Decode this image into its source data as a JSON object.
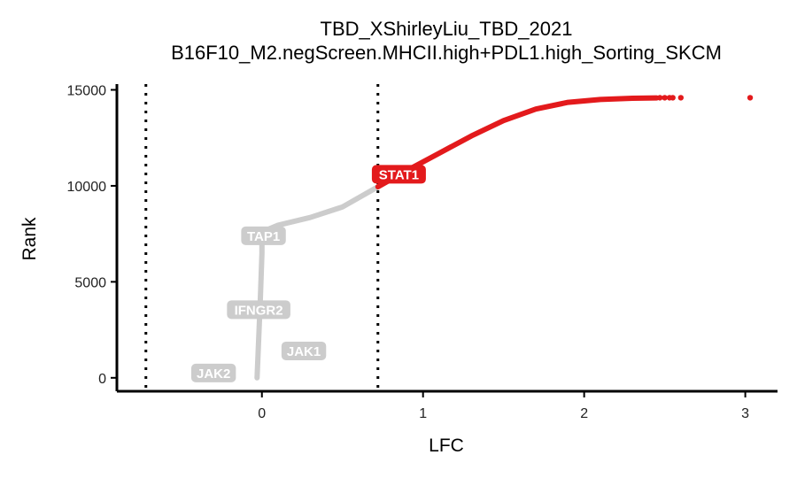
{
  "chart_data": {
    "type": "scatter",
    "title": "TBD_XShirleyLiu_TBD_2021",
    "subtitle": "B16F10_M2.negScreen.MHCII.high+PDL1.high_Sorting_SKCM",
    "xlabel": "LFC",
    "ylabel": "Rank",
    "xlim": [
      -0.9,
      3.2
    ],
    "ylim": [
      -700,
      15300
    ],
    "x_ticks": [
      0,
      1,
      2,
      3
    ],
    "y_ticks": [
      0,
      5000,
      10000,
      15000
    ],
    "x_tick_labels": [
      "0",
      "1",
      "2",
      "3"
    ],
    "y_tick_labels": [
      "0",
      "5000",
      "10000",
      "15000"
    ],
    "thresholds": [
      -0.72,
      0.72
    ],
    "threshold_style": "dotted",
    "grid": false,
    "legend": "none",
    "colors": {
      "significant": "#e31a1c",
      "background": "#cccccc",
      "axis": "#000000"
    },
    "curve": {
      "description_points": [
        [
          -0.03,
          0
        ],
        [
          -0.02,
          2000
        ],
        [
          -0.01,
          4000
        ],
        [
          0.0,
          6500
        ],
        [
          0.0,
          7600
        ],
        [
          0.1,
          7950
        ],
        [
          0.3,
          8350
        ],
        [
          0.5,
          8900
        ],
        [
          0.72,
          9950
        ],
        [
          0.9,
          10800
        ],
        [
          1.1,
          11700
        ],
        [
          1.3,
          12600
        ],
        [
          1.5,
          13400
        ],
        [
          1.7,
          14000
        ],
        [
          1.9,
          14350
        ],
        [
          2.1,
          14500
        ],
        [
          2.3,
          14560
        ],
        [
          2.45,
          14580
        ],
        [
          2.55,
          14585
        ],
        [
          2.6,
          14590
        ],
        [
          3.03,
          14600
        ]
      ]
    },
    "genes": [
      {
        "name": "STAT1",
        "x": 0.85,
        "y": 10600,
        "highlight": true
      },
      {
        "name": "TAP1",
        "x": 0.01,
        "y": 7400,
        "highlight": false
      },
      {
        "name": "IFNGR2",
        "x": -0.02,
        "y": 3550,
        "highlight": false
      },
      {
        "name": "JAK1",
        "x": 0.26,
        "y": 1400,
        "highlight": false
      },
      {
        "name": "JAK2",
        "x": -0.3,
        "y": 250,
        "highlight": false
      }
    ]
  }
}
